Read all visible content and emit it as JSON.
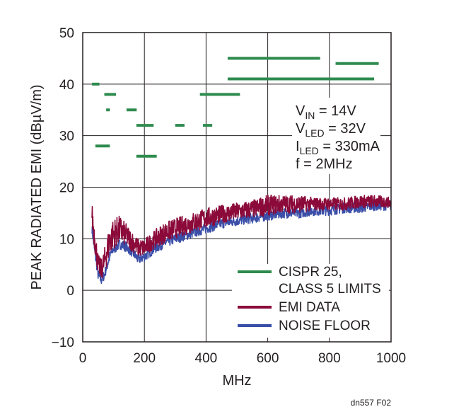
{
  "chart_data": {
    "type": "line",
    "xlabel": "MHz",
    "ylabel": "PEAK RADIATED EMI (dBµV/m)",
    "xlim": [
      0,
      1000
    ],
    "ylim": [
      -10,
      50
    ],
    "x_ticks": [
      "0",
      "200",
      "400",
      "600",
      "800",
      "1000"
    ],
    "y_ticks": [
      "50",
      "40",
      "30",
      "20",
      "10",
      "0",
      "−10"
    ],
    "grid": true,
    "legend_position": "bottom-right",
    "conditions": [
      {
        "main": "V",
        "sub": "IN",
        "rest": " = 14V"
      },
      {
        "main": "V",
        "sub": "LED",
        "rest": " = 32V"
      },
      {
        "main": "I",
        "sub": "LED",
        "rest": " = 330mA"
      },
      {
        "main": "f = 2MHz",
        "sub": "",
        "rest": ""
      }
    ],
    "figure_id": "dn557 F02",
    "series": [
      {
        "name": "CISPR 25, CLASS 5 LIMITS",
        "name_lines": [
          "CISPR 25,",
          "CLASS 5 LIMITS"
        ],
        "kind": "segments",
        "color": "#2e8b4e",
        "segments": [
          {
            "x": [
              30,
              54
            ],
            "y": 40
          },
          {
            "x": [
              70,
              108
            ],
            "y": 38
          },
          {
            "x": [
              76,
              88
            ],
            "y": 35
          },
          {
            "x": [
              142,
              175
            ],
            "y": 35
          },
          {
            "x": [
              174,
              230
            ],
            "y": 32
          },
          {
            "x": [
              300,
              330
            ],
            "y": 32
          },
          {
            "x": [
              390,
              420
            ],
            "y": 32
          },
          {
            "x": [
              41,
              88
            ],
            "y": 28
          },
          {
            "x": [
              174,
              240
            ],
            "y": 26
          },
          {
            "x": [
              380,
              510
            ],
            "y": 38
          },
          {
            "x": [
              470,
              770
            ],
            "y": 45
          },
          {
            "x": [
              470,
              945
            ],
            "y": 41
          },
          {
            "x": [
              820,
              960
            ],
            "y": 44
          }
        ]
      },
      {
        "name": "EMI DATA",
        "kind": "band",
        "color": "#8b0a3a",
        "x": [
          30,
          40,
          50,
          60,
          70,
          80,
          90,
          100,
          120,
          140,
          160,
          180,
          200,
          230,
          260,
          300,
          350,
          400,
          450,
          500,
          550,
          600,
          650,
          700,
          750,
          800,
          850,
          900,
          950,
          1000
        ],
        "y_low": [
          12,
          7,
          3,
          2,
          3,
          5,
          7,
          8,
          9,
          8.5,
          7.5,
          6.5,
          6.5,
          8,
          9,
          10,
          11,
          12,
          13,
          13.5,
          14,
          14.5,
          15,
          15,
          15.5,
          15.5,
          15.5,
          16,
          16,
          16
        ],
        "y_high": [
          17,
          12,
          7,
          6,
          8,
          11,
          13,
          14,
          14.5,
          13,
          11.5,
          10,
          10,
          11.5,
          13,
          14,
          15,
          16,
          16.5,
          17,
          17.5,
          18.5,
          18.5,
          18.5,
          18,
          18,
          18,
          18.5,
          18.5,
          18
        ]
      },
      {
        "name": "NOISE FLOOR",
        "kind": "band",
        "color": "#3b4ea8",
        "x": [
          30,
          40,
          50,
          60,
          70,
          80,
          90,
          100,
          120,
          140,
          160,
          180,
          200,
          230,
          260,
          300,
          350,
          400,
          450,
          500,
          550,
          600,
          650,
          700,
          750,
          800,
          850,
          900,
          950,
          1000
        ],
        "y_low": [
          11,
          6,
          2,
          1,
          2,
          4,
          6,
          7,
          8,
          7.5,
          6.5,
          5,
          5.5,
          7,
          8,
          9,
          10,
          11,
          12,
          12.5,
          13,
          13.5,
          14,
          14,
          14.5,
          14.5,
          15,
          15,
          15.5,
          15.5
        ],
        "y_high": [
          13,
          8,
          4,
          3,
          4,
          6,
          8,
          9,
          10,
          9.5,
          8.5,
          7,
          7.5,
          9,
          10,
          11,
          12,
          13,
          14,
          14.5,
          15,
          15.5,
          16,
          16,
          16.5,
          16.5,
          17,
          17,
          17.5,
          17.5
        ]
      }
    ]
  }
}
